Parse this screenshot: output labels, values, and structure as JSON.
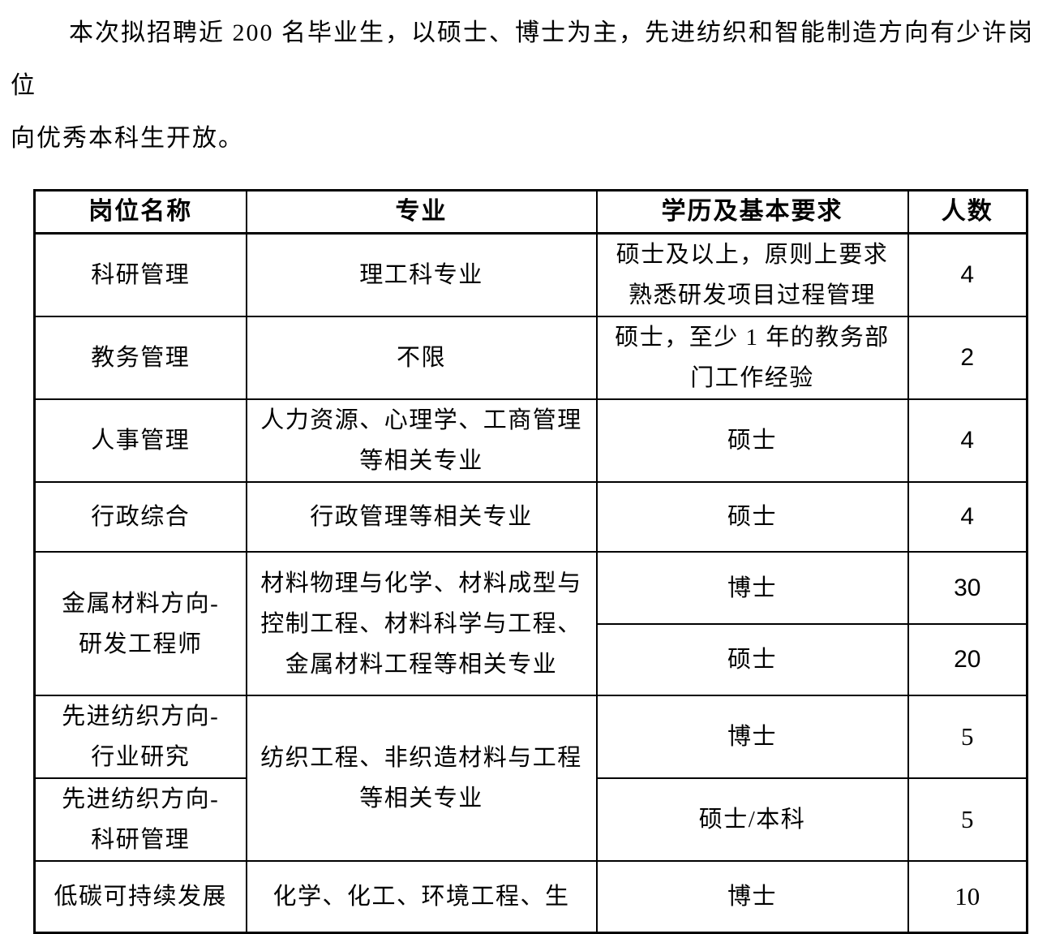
{
  "intro": {
    "text": "本次拟招聘近 200 名毕业生，以硕士、博士为主，先进纺织和智能制造方向有少许岗位\n向优秀本科生开放。"
  },
  "table": {
    "headers": [
      "岗位名称",
      "专业",
      "学历及基本要求",
      "人数"
    ],
    "rows": [
      {
        "position": "科研管理",
        "major": "理工科专业",
        "requirement": "硕士及以上，原则上要求\n熟悉研发项目过程管理",
        "count": "4"
      },
      {
        "position": "教务管理",
        "major": "不限",
        "requirement": "硕士，至少 1 年的教务部\n门工作经验",
        "count": "2"
      },
      {
        "position": "人事管理",
        "major": "人力资源、心理学、工商管理\n等相关专业",
        "requirement": "硕士",
        "count": "4"
      },
      {
        "position": "行政综合",
        "major": "行政管理等相关专业",
        "requirement": "硕士",
        "count": "4"
      },
      {
        "position": "金属材料方向-\n研发工程师",
        "major": "材料物理与化学、材料成型与\n控制工程、材料科学与工程、\n金属材料工程等相关专业",
        "requirement": "博士",
        "count": "30"
      },
      {
        "requirement": "硕士",
        "count": "20"
      },
      {
        "position": "先进纺织方向-\n行业研究",
        "major": "纺织工程、非织造材料与工程\n等相关专业",
        "requirement": "博士",
        "count": "5"
      },
      {
        "position": "先进纺织方向-\n科研管理",
        "requirement": "硕士/本科",
        "count": "5"
      },
      {
        "position": "低碳可持续发展",
        "major": "化学、化工、环境工程、生",
        "requirement": "博士",
        "count": "10"
      }
    ]
  }
}
